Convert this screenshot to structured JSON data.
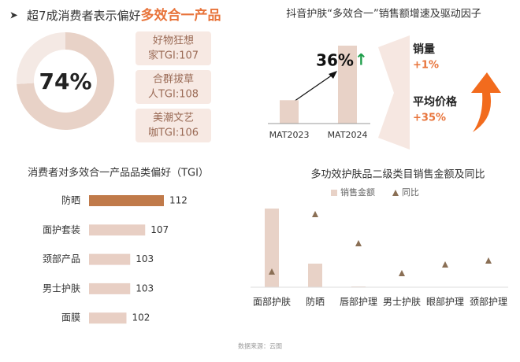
{
  "header": {
    "title": "超7成消费者表示偏好",
    "highlight": "多效合一产品"
  },
  "callouts": [
    [
      "好物狂想",
      "家TGI:107"
    ],
    [
      "合群拔草",
      "人TGI:108"
    ],
    [
      "美潮文艺",
      "咖TGI:106"
    ]
  ],
  "chart_data": [
    {
      "type": "donut",
      "values": [
        74,
        26
      ],
      "center_label": "74%",
      "colors": [
        "#e8d2c7",
        "#f4e9e4"
      ]
    },
    {
      "type": "bar",
      "title": "抖音护肤“多效合一”销售额增速及驱动因子",
      "categories": [
        "MAT2023",
        "MAT2024"
      ],
      "values": [
        30,
        100
      ],
      "ylim": [
        0,
        100
      ],
      "color": "#e8d2c7",
      "annotation": "36%",
      "annotation_arrow": "↑",
      "drivers": [
        {
          "label": "销量",
          "value": "+1%"
        },
        {
          "label": "平均价格",
          "value": "+35%"
        }
      ]
    },
    {
      "type": "hbar",
      "title": "消费者对多效合一产品品类偏好（TGI）",
      "categories": [
        "防晒",
        "面护套装",
        "颈部产品",
        "男士护肤",
        "面膜"
      ],
      "values": [
        112,
        107,
        103,
        103,
        102
      ],
      "xlim": [
        92,
        112
      ],
      "colors": [
        "#c07a4a",
        "#e8cfc4",
        "#e8cfc4",
        "#e8cfc4",
        "#e8cfc4"
      ]
    },
    {
      "type": "combo",
      "title": "多功效护肤品二级类目销售金额及同比",
      "categories": [
        "面部护肤",
        "防晒",
        "唇部护理",
        "男士护肤",
        "眼部护理",
        "颈部护理"
      ],
      "ylim": [
        0,
        100
      ],
      "y2lim": [
        0,
        100
      ],
      "series": [
        {
          "name": "销售金额",
          "color": "#e8d2c7",
          "values": [
            100,
            30,
            1,
            0.5,
            0.3,
            0.3
          ]
        },
        {
          "name": "同比",
          "color": "#8a6f55",
          "axis": "y2",
          "values": [
            20,
            93,
            56,
            18,
            29,
            34
          ]
        }
      ]
    }
  ],
  "footer": "数据来源：云图"
}
